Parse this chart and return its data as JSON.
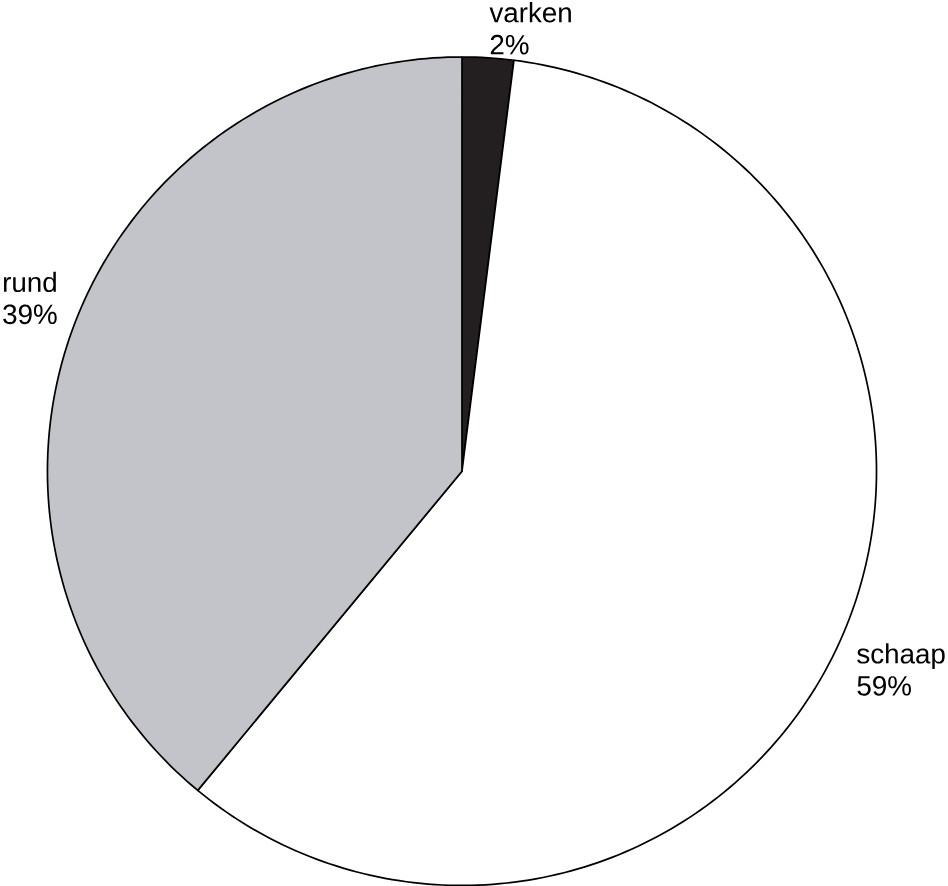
{
  "chart_data": {
    "type": "pie",
    "categories": [
      "varken",
      "schaap",
      "rund"
    ],
    "values": [
      2,
      59,
      39
    ],
    "value_labels": [
      "2%",
      "59%",
      "39%"
    ],
    "colors": [
      "#231f20",
      "#ffffff",
      "#c3c4c9"
    ]
  }
}
